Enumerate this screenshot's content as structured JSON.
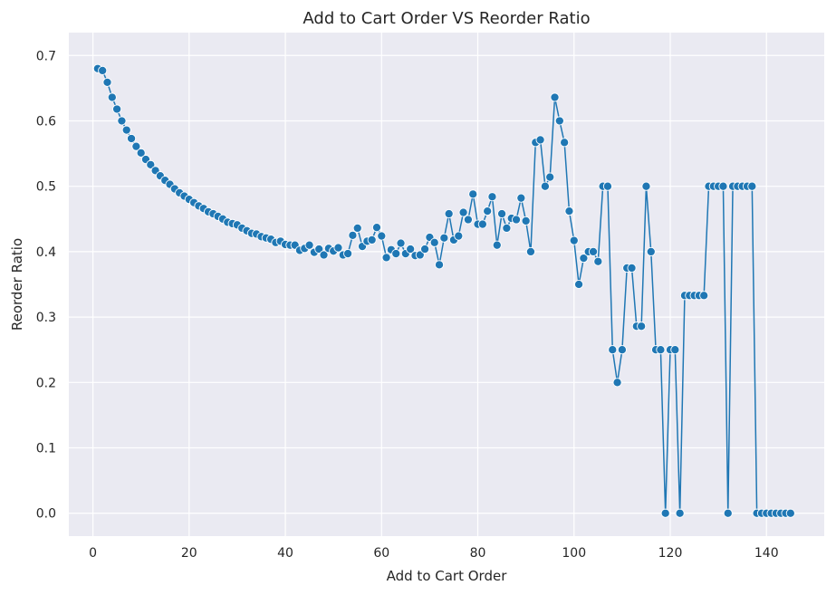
{
  "chart_data": {
    "type": "line",
    "title": "Add to Cart Order VS Reorder Ratio",
    "xlabel": "Add to Cart Order",
    "ylabel": "Reorder Ratio",
    "xlim": [
      -5,
      152
    ],
    "ylim": [
      -0.035,
      0.735
    ],
    "xticks": [
      0,
      20,
      40,
      60,
      80,
      100,
      120,
      140
    ],
    "yticks": [
      0.0,
      0.1,
      0.2,
      0.3,
      0.4,
      0.5,
      0.6,
      0.7
    ],
    "grid": true,
    "marker": "circle",
    "series": [
      {
        "color": "#1f77b4",
        "x": [
          1,
          2,
          3,
          4,
          5,
          6,
          7,
          8,
          9,
          10,
          11,
          12,
          13,
          14,
          15,
          16,
          17,
          18,
          19,
          20,
          21,
          22,
          23,
          24,
          25,
          26,
          27,
          28,
          29,
          30,
          31,
          32,
          33,
          34,
          35,
          36,
          37,
          38,
          39,
          40,
          41,
          42,
          43,
          44,
          45,
          46,
          47,
          48,
          49,
          50,
          51,
          52,
          53,
          54,
          55,
          56,
          57,
          58,
          59,
          60,
          61,
          62,
          63,
          64,
          65,
          66,
          67,
          68,
          69,
          70,
          71,
          72,
          73,
          74,
          75,
          76,
          77,
          78,
          79,
          80,
          81,
          82,
          83,
          84,
          85,
          86,
          87,
          88,
          89,
          90,
          91,
          92,
          93,
          94,
          95,
          96,
          97,
          98,
          99,
          100,
          101,
          102,
          103,
          104,
          105,
          106,
          107,
          108,
          109,
          110,
          111,
          112,
          113,
          114,
          115,
          116,
          117,
          118,
          119,
          120,
          121,
          122,
          123,
          124,
          125,
          126,
          127,
          128,
          129,
          130,
          131,
          132,
          133,
          134,
          135,
          136,
          137,
          138,
          139,
          140,
          141,
          142,
          143,
          144,
          145
        ],
        "y": [
          0.68,
          0.677,
          0.659,
          0.636,
          0.618,
          0.6,
          0.586,
          0.573,
          0.561,
          0.551,
          0.541,
          0.533,
          0.524,
          0.516,
          0.509,
          0.503,
          0.496,
          0.49,
          0.485,
          0.48,
          0.475,
          0.47,
          0.466,
          0.461,
          0.458,
          0.454,
          0.45,
          0.445,
          0.443,
          0.441,
          0.436,
          0.432,
          0.428,
          0.427,
          0.423,
          0.421,
          0.419,
          0.414,
          0.416,
          0.411,
          0.41,
          0.41,
          0.402,
          0.405,
          0.41,
          0.399,
          0.404,
          0.395,
          0.405,
          0.401,
          0.406,
          0.395,
          0.397,
          0.425,
          0.436,
          0.408,
          0.416,
          0.418,
          0.437,
          0.424,
          0.391,
          0.403,
          0.397,
          0.413,
          0.397,
          0.404,
          0.394,
          0.395,
          0.404,
          0.422,
          0.414,
          0.38,
          0.421,
          0.458,
          0.418,
          0.424,
          0.46,
          0.449,
          0.488,
          0.442,
          0.442,
          0.462,
          0.484,
          0.41,
          0.458,
          0.436,
          0.451,
          0.449,
          0.482,
          0.447,
          0.4,
          0.567,
          0.571,
          0.5,
          0.514,
          0.636,
          0.6,
          0.567,
          0.462,
          0.417,
          0.35,
          0.39,
          0.4,
          0.4,
          0.385,
          0.5,
          0.5,
          0.25,
          0.2,
          0.25,
          0.375,
          0.375,
          0.286,
          0.286,
          0.5,
          0.4,
          0.25,
          0.25,
          0.0,
          0.25,
          0.25,
          0.0,
          0.333,
          0.333,
          0.333,
          0.333,
          0.333,
          0.5,
          0.5,
          0.5,
          0.5,
          0.0,
          0.5,
          0.5,
          0.5,
          0.5,
          0.5,
          0.0,
          0.0,
          0.0,
          0.0,
          0.0,
          0.0,
          0.0,
          0.0
        ]
      }
    ]
  }
}
